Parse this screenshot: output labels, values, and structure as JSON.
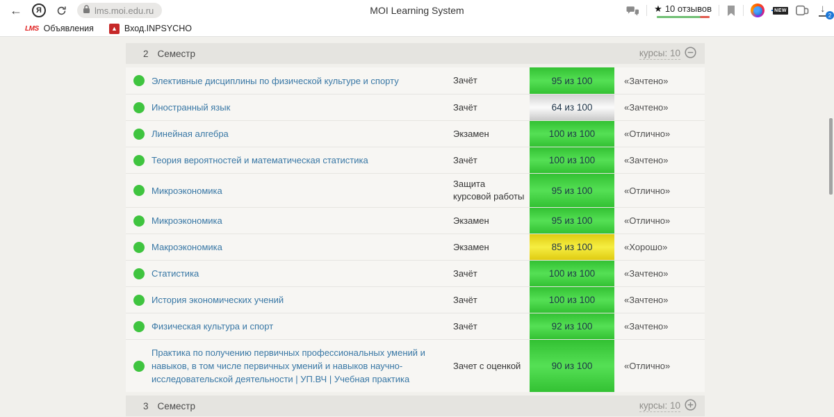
{
  "browser": {
    "url": "lms.moi.edu.ru",
    "page_title": "MOI Learning System",
    "reviews_label": "10 отзывов",
    "downloads_badge": "2",
    "new_badge": "NEW",
    "bookmarks": [
      {
        "label": "Объявления",
        "favicon_text": "LMS"
      },
      {
        "label": "Вход.INPSYCHO",
        "favicon_text": "▲"
      }
    ]
  },
  "sections": {
    "semester2": {
      "number": "2",
      "label": "Семестр",
      "courses_link": "курсы: 10",
      "toggle": "collapse"
    },
    "semester3": {
      "number": "3",
      "label": "Семестр",
      "courses_link": "курсы: 10",
      "toggle": "expand"
    }
  },
  "table": {
    "rows": [
      {
        "name": "Элективные дисциплины по физической культуре и спорту",
        "type": "Зачёт",
        "score": "95 из 100",
        "score_color": "green",
        "grade": "«Зачтено»"
      },
      {
        "name": "Иностранный язык",
        "type": "Зачёт",
        "score": "64 из 100",
        "score_color": "gray",
        "grade": "«Зачтено»"
      },
      {
        "name": "Линейная алгебра",
        "type": "Экзамен",
        "score": "100 из 100",
        "score_color": "green",
        "grade": "«Отлично»"
      },
      {
        "name": "Теория вероятностей и математическая статистика",
        "type": "Зачёт",
        "score": "100 из 100",
        "score_color": "green",
        "grade": "«Зачтено»"
      },
      {
        "name": "Микроэкономика",
        "type": "Защита курсовой работы",
        "score": "95 из 100",
        "score_color": "green",
        "grade": "«Отлично»"
      },
      {
        "name": "Микроэкономика",
        "type": "Экзамен",
        "score": "95 из 100",
        "score_color": "green",
        "grade": "«Отлично»"
      },
      {
        "name": "Макроэкономика",
        "type": "Экзамен",
        "score": "85 из 100",
        "score_color": "yellow",
        "grade": "«Хорошо»"
      },
      {
        "name": "Статистика",
        "type": "Зачёт",
        "score": "100 из 100",
        "score_color": "green",
        "grade": "«Зачтено»"
      },
      {
        "name": "История экономических учений",
        "type": "Зачёт",
        "score": "100 из 100",
        "score_color": "green",
        "grade": "«Зачтено»"
      },
      {
        "name": "Физическая культура и спорт",
        "type": "Зачёт",
        "score": "92 из 100",
        "score_color": "green",
        "grade": "«Зачтено»"
      },
      {
        "name": "Практика по получению первичных профессиональных умений и навыков, в том числе первичных умений и навыков научно-исследовательской деятельности | УП.ВЧ | Учебная практика",
        "type": "Зачет с оценкой",
        "score": "90 из 100",
        "score_color": "green",
        "grade": "«Отлично»"
      }
    ]
  },
  "colors": {
    "score_green": "#3fc43f",
    "score_yellow": "#f0e32a",
    "score_gray": "#dcdcdc",
    "link_blue": "#3877a5"
  }
}
